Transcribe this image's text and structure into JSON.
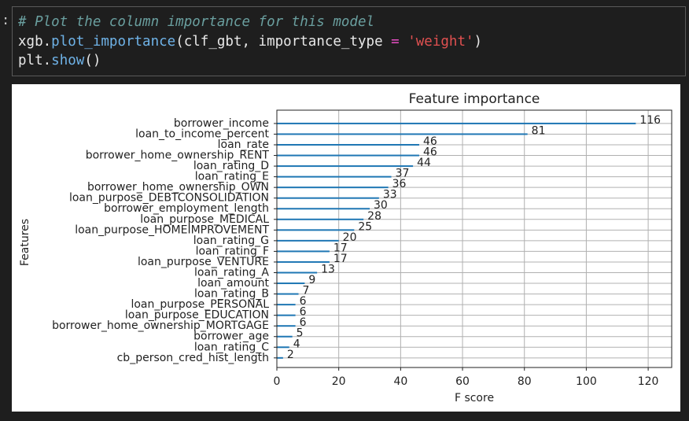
{
  "code": {
    "prompt": ":",
    "lines": [
      [
        "# Plot the column importance for this model"
      ],
      [
        "xgb.",
        "plot_importance",
        "(clf_gbt, importance_type ",
        "=",
        " ",
        "'weight'",
        ")"
      ],
      [
        "plt.",
        "show",
        "()"
      ]
    ]
  },
  "chart_data": {
    "type": "barh",
    "title": "Feature importance",
    "xlabel": "F score",
    "ylabel": "Features",
    "categories": [
      "borrower_income",
      "loan_to_income_percent",
      "loan_rate",
      "borrower_home_ownership_RENT",
      "loan_rating_D",
      "loan_rating_E",
      "borrower_home_ownership_OWN",
      "loan_purpose_DEBTCONSOLIDATION",
      "borrower_employment_length",
      "loan_purpose_MEDICAL",
      "loan_purpose_HOMEIMPROVEMENT",
      "loan_rating_G",
      "loan_rating_F",
      "loan_purpose_VENTURE",
      "loan_rating_A",
      "loan_amount",
      "loan_rating_B",
      "loan_purpose_PERSONAL",
      "loan_purpose_EDUCATION",
      "borrower_home_ownership_MORTGAGE",
      "borrower_age",
      "loan_rating_C",
      "cb_person_cred_hist_length"
    ],
    "values": [
      116,
      81,
      46,
      46,
      44,
      37,
      36,
      33,
      30,
      28,
      25,
      20,
      17,
      17,
      13,
      9,
      7,
      6,
      6,
      6,
      5,
      4,
      2
    ],
    "color": "#1f77b4",
    "xlim": [
      0,
      127.6
    ],
    "xticks": [
      0,
      20,
      40,
      60,
      80,
      100,
      120
    ],
    "grid": true
  }
}
